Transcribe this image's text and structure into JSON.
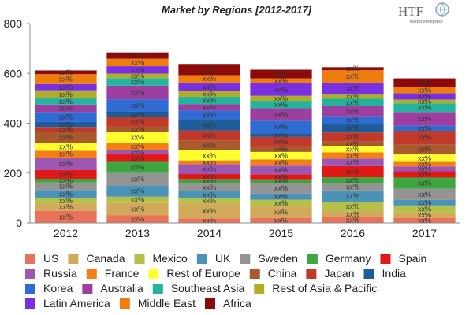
{
  "chart_data": {
    "type": "bar",
    "stacked": true,
    "title": "Market by Regions [2012-2017]",
    "xlabel": "",
    "ylabel": "",
    "ylim": [
      0,
      800
    ],
    "yticks": [
      "0",
      "200",
      "400",
      "600",
      "800"
    ],
    "categories": [
      "2012",
      "2013",
      "2014",
      "2015",
      "2016",
      "2017"
    ],
    "segment_label": "xx%",
    "grid": false,
    "legend_position": "bottom",
    "series": [
      {
        "name": "US",
        "color": "#e8735a",
        "values": [
          48,
          30,
          18,
          20,
          22,
          20
        ]
      },
      {
        "name": "Canada",
        "color": "#d2a85a",
        "values": [
          30,
          50,
          60,
          45,
          25,
          22
        ]
      },
      {
        "name": "Mexico",
        "color": "#b5c048",
        "values": [
          22,
          25,
          20,
          28,
          38,
          28
        ]
      },
      {
        "name": "UK",
        "color": "#4a92b8",
        "values": [
          32,
          45,
          30,
          25,
          45,
          22
        ]
      },
      {
        "name": "Sweden",
        "color": "#949494",
        "values": [
          30,
          50,
          30,
          42,
          28,
          45
        ]
      },
      {
        "name": "Germany",
        "color": "#3fa53f",
        "values": [
          15,
          45,
          18,
          15,
          25,
          45
        ]
      },
      {
        "name": "Spain",
        "color": "#e01818",
        "values": [
          35,
          30,
          20,
          20,
          45,
          25
        ]
      },
      {
        "name": "Russia",
        "color": "#9e56b3",
        "values": [
          50,
          16,
          40,
          35,
          30,
          20
        ]
      },
      {
        "name": "France",
        "color": "#f57f17",
        "values": [
          28,
          30,
          15,
          25,
          25,
          18
        ]
      },
      {
        "name": "Rest of Europe",
        "color": "#ffff2e",
        "values": [
          30,
          45,
          40,
          30,
          25,
          30
        ]
      },
      {
        "name": "China",
        "color": "#a9592e",
        "values": [
          45,
          20,
          40,
          20,
          20,
          40
        ]
      },
      {
        "name": "Japan",
        "color": "#c0392b",
        "values": [
          20,
          40,
          40,
          40,
          35,
          55
        ]
      },
      {
        "name": "India",
        "color": "#1f5c99",
        "values": [
          20,
          20,
          45,
          15,
          35,
          0
        ]
      },
      {
        "name": "Korea",
        "color": "#2e6bd3",
        "values": [
          40,
          50,
          35,
          50,
          30,
          20
        ]
      },
      {
        "name": "Australia",
        "color": "#9c3fa0",
        "values": [
          30,
          55,
          25,
          50,
          40,
          55
        ]
      },
      {
        "name": "Southeast Asia",
        "color": "#25b39e",
        "values": [
          25,
          30,
          30,
          30,
          30,
          35
        ]
      },
      {
        "name": "Rest of Asia & Pacific",
        "color": "#b0ae28",
        "values": [
          32,
          18,
          22,
          20,
          20,
          15
        ]
      },
      {
        "name": "Latin America",
        "color": "#7a2fe0",
        "values": [
          25,
          30,
          35,
          50,
          45,
          25
        ]
      },
      {
        "name": "Middle East",
        "color": "#ef7d0d",
        "values": [
          40,
          30,
          30,
          20,
          50,
          25
        ]
      },
      {
        "name": "Africa",
        "color": "#8b0a0a",
        "values": [
          15,
          25,
          45,
          35,
          12,
          35
        ]
      }
    ]
  },
  "logo": {
    "text": "HTF",
    "sub": "Market Intelligence"
  }
}
